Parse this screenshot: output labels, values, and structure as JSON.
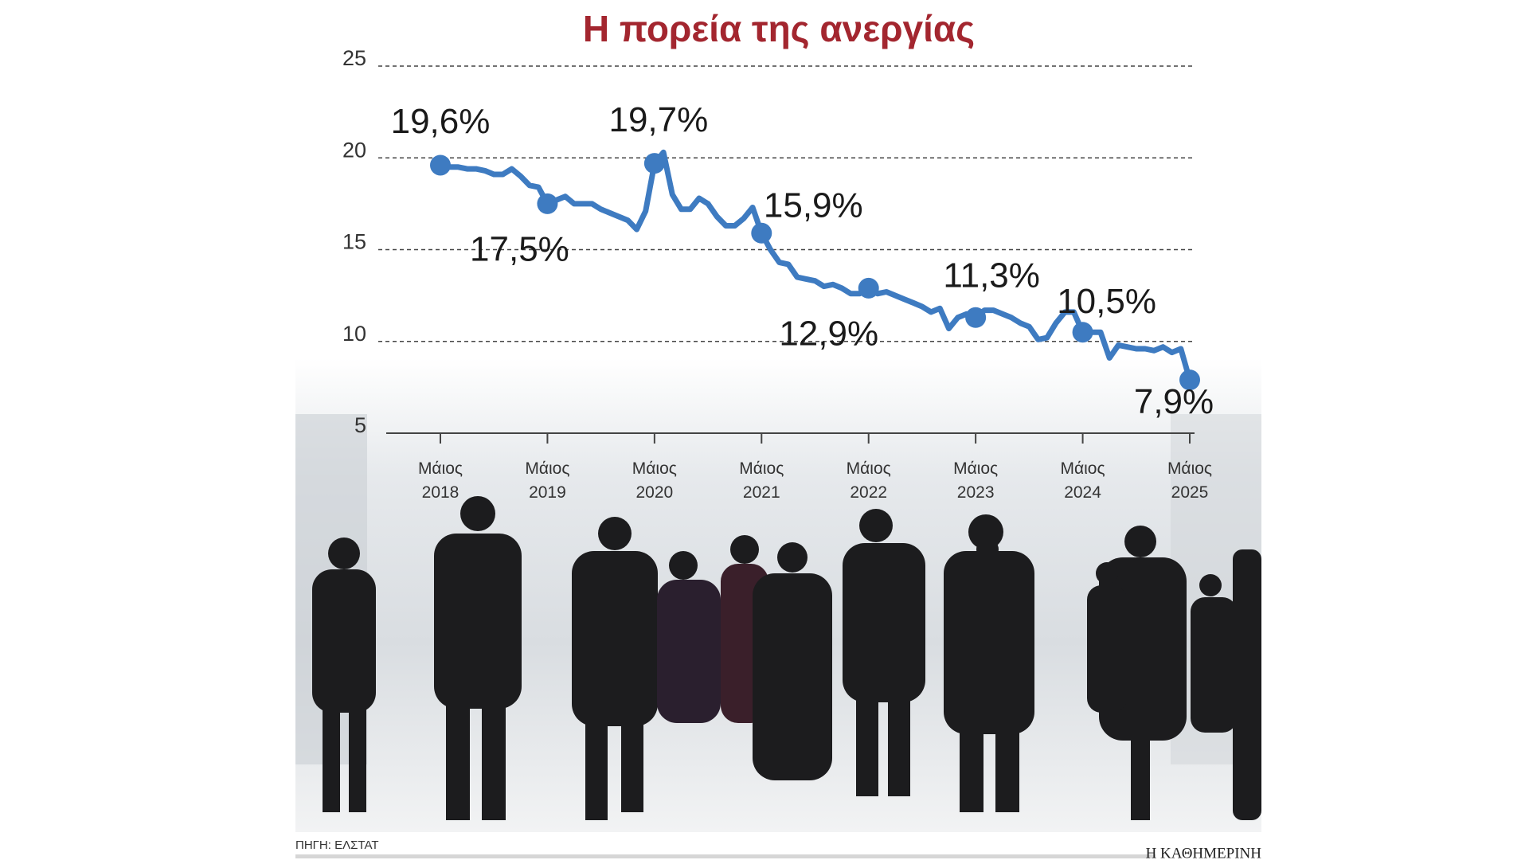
{
  "chart_data": {
    "type": "line",
    "title": "Η πορεία της ανεργίας",
    "source": "ΠΗΓΗ: ΕΛΣΤΑΤ",
    "publisher": "Η ΚΑΘΗΜΕΡΙΝΗ",
    "categories": [
      "Μάιος 2018",
      null,
      null,
      null,
      null,
      null,
      null,
      null,
      null,
      null,
      null,
      null,
      "Μάιος 2019",
      null,
      null,
      null,
      null,
      null,
      null,
      null,
      null,
      null,
      null,
      null,
      "Μάιος 2020",
      null,
      null,
      null,
      null,
      null,
      null,
      null,
      null,
      null,
      null,
      null,
      "Μάιος 2021",
      null,
      null,
      null,
      null,
      null,
      null,
      null,
      null,
      null,
      null,
      null,
      "Μάιος 2022",
      null,
      null,
      null,
      null,
      null,
      null,
      null,
      null,
      null,
      null,
      null,
      "Μάιος 2023",
      null,
      null,
      null,
      null,
      null,
      null,
      null,
      null,
      null,
      null,
      null,
      "Μάιος 2024",
      null,
      null,
      null,
      null,
      null,
      null,
      null,
      null,
      null,
      null,
      null,
      "Μάιος 2025"
    ],
    "values": [
      19.6,
      19.5,
      19.5,
      19.4,
      19.4,
      19.3,
      19.1,
      19.1,
      19.4,
      19.0,
      18.5,
      18.4,
      17.5,
      17.7,
      17.9,
      17.5,
      17.5,
      17.5,
      17.2,
      17.0,
      16.8,
      16.6,
      16.1,
      17.1,
      19.7,
      20.3,
      18.0,
      17.2,
      17.2,
      17.8,
      17.5,
      16.8,
      16.3,
      16.3,
      16.7,
      17.3,
      15.9,
      15.0,
      14.3,
      14.2,
      13.5,
      13.4,
      13.3,
      13.0,
      13.1,
      12.9,
      12.6,
      12.6,
      12.9,
      12.6,
      12.7,
      12.5,
      12.3,
      12.1,
      11.9,
      11.6,
      11.8,
      10.7,
      11.3,
      11.5,
      11.3,
      11.7,
      11.7,
      11.5,
      11.3,
      11.0,
      10.8,
      10.1,
      10.2,
      11.0,
      11.6,
      11.6,
      10.5,
      10.5,
      10.5,
      9.1,
      9.8,
      9.7,
      9.6,
      9.6,
      9.5,
      9.7,
      9.4,
      9.6,
      7.9
    ],
    "value_labels": [
      "19,6%",
      null,
      null,
      null,
      null,
      null,
      null,
      null,
      null,
      null,
      null,
      null,
      "17,5%",
      null,
      null,
      null,
      null,
      null,
      null,
      null,
      null,
      null,
      null,
      null,
      "19,7%",
      null,
      null,
      null,
      null,
      null,
      null,
      null,
      null,
      null,
      null,
      null,
      "15,9%",
      null,
      null,
      null,
      null,
      null,
      null,
      null,
      null,
      null,
      null,
      null,
      "12,9%",
      null,
      null,
      null,
      null,
      null,
      null,
      null,
      null,
      null,
      null,
      null,
      "11,3%",
      null,
      null,
      null,
      null,
      null,
      null,
      null,
      null,
      null,
      null,
      null,
      "10,5%",
      null,
      null,
      null,
      null,
      null,
      null,
      null,
      null,
      null,
      null,
      null,
      "7,9%"
    ],
    "color": "#3e7bc1",
    "ylim": [
      5,
      25
    ],
    "yticks": [
      5,
      10,
      15,
      20,
      25
    ],
    "grid": true
  }
}
